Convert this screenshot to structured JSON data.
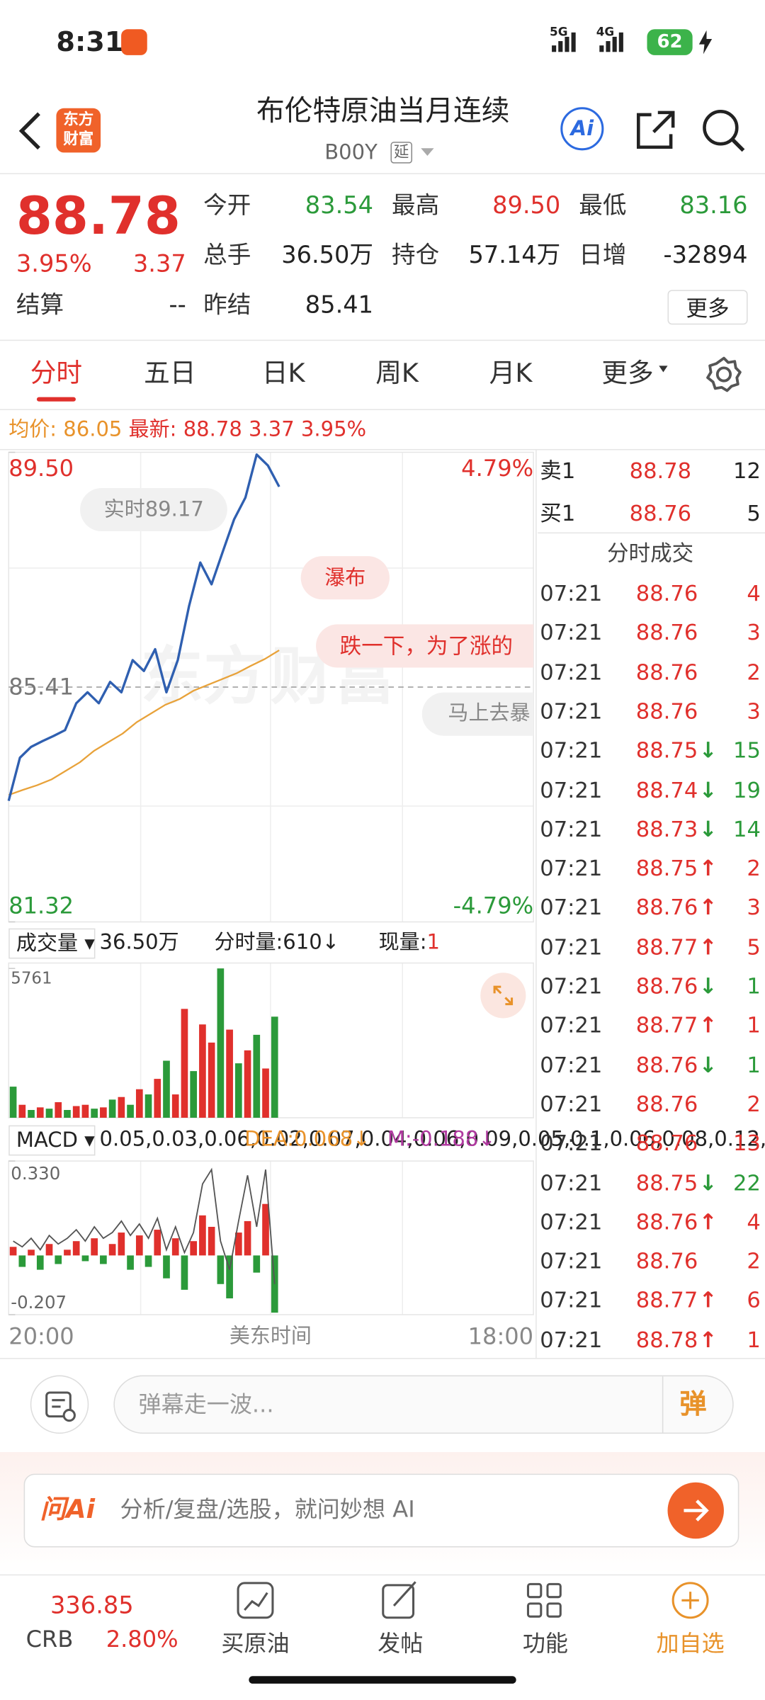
{
  "status": {
    "time": "8:31",
    "net1": "5G",
    "net2": "4G",
    "battery": "62"
  },
  "header": {
    "logo": [
      "东方",
      "财富"
    ],
    "title": "布伦特原油当月连续",
    "code": "B00Y",
    "tag": "延",
    "ai": "Ai"
  },
  "quote": {
    "price": "88.78",
    "pct": "3.95%",
    "change": "3.37",
    "fields": [
      {
        "label": "今开",
        "value": "83.54"
      },
      {
        "label": "最高",
        "value": "89.50"
      },
      {
        "label": "最低",
        "value": "83.16"
      },
      {
        "label": "总手",
        "value": "36.50万"
      },
      {
        "label": "持仓",
        "value": "57.14万"
      },
      {
        "label": "日增",
        "value": "-32894"
      },
      {
        "label": "结算",
        "value": "--"
      },
      {
        "label": "昨结",
        "value": "85.41"
      }
    ],
    "more": "更多"
  },
  "tabs": [
    "分时",
    "五日",
    "日K",
    "周K",
    "月K",
    "更多"
  ],
  "info": {
    "avg_label": "均价:",
    "avg": "86.05",
    "latest_label": "最新:",
    "latest": "88.78",
    "change": "3.37",
    "pct": "3.95%"
  },
  "intraday": {
    "yticks": [
      {
        "value": 89.5,
        "label": "89.50"
      },
      {
        "value": 85.41,
        "label": "85.41"
      },
      {
        "value": 81.32,
        "label": "81.32"
      }
    ],
    "pct_top": "4.79%",
    "pct_bottom": "-4.79%",
    "bubbles": [
      "实时89.17",
      "瀑布",
      "跌一下，为了涨的",
      "马上去暴"
    ],
    "price": [
      83.43,
      84.18,
      84.37,
      84.47,
      84.56,
      84.66,
      85.13,
      85.32,
      85.13,
      85.5,
      85.32,
      85.88,
      85.69,
      86.07,
      85.32,
      85.88,
      86.82,
      87.58,
      87.2,
      87.77,
      88.33,
      88.71,
      89.46,
      89.27,
      88.9
    ],
    "avg": [
      83.53,
      83.62,
      83.7,
      83.8,
      83.95,
      84.1,
      84.3,
      84.45,
      84.6,
      84.8,
      84.95,
      85.1,
      85.2,
      85.35,
      85.45,
      85.55,
      85.65,
      85.78,
      85.9,
      86.05
    ],
    "price_color": "#2f5fb0",
    "avg_color": "#e8a23a",
    "x_left": "20:00",
    "x_mid": "美东时间",
    "x_right": "18:00"
  },
  "volume": {
    "label": "成交量",
    "total": "36.50万",
    "tick_vol": "分时量:610↓",
    "now_label": "现量:",
    "now": "1",
    "max": 5761,
    "values": [
      1200,
      500,
      300,
      400,
      350,
      600,
      300,
      450,
      500,
      350,
      400,
      700,
      800,
      500,
      1100,
      900,
      1500,
      2200,
      900,
      4200,
      1800,
      3600,
      2900,
      5761,
      3400,
      2100,
      2600,
      3200,
      1900,
      3900
    ],
    "colors": [
      "#2b9a3a",
      "#e0302c",
      "#2b9a3a",
      "#e0302c",
      "#2b9a3a",
      "#e0302c",
      "#2b9a3a",
      "#e0302c",
      "#e0302c",
      "#2b9a3a",
      "#e0302c",
      "#2b9a3a",
      "#e0302c",
      "#2b9a3a",
      "#e0302c",
      "#2b9a3a",
      "#e0302c",
      "#2b9a3a",
      "#e0302c",
      "#e0302c",
      "#2b9a3a",
      "#e0302c",
      "#e0302c",
      "#2b9a3a",
      "#e0302c",
      "#2b9a3a",
      "#e0302c",
      "#2b9a3a",
      "#e0302c",
      "#2b9a3a"
    ]
  },
  "macd": {
    "label": "MACD",
    "dif": [
      0.05,
      0.03,
      0.06,
      0.02,
      0.07,
      0.04,
      0.06,
      0.09,
      0.05,
      0.1,
      0.06,
      0.08,
      0.12,
      0.07,
      0.11,
      0.06,
      0.13,
      0.02,
      0.1,
      0.01,
      0.08,
      0.25,
      0.3,
      0.05,
      -0.05,
      0.12,
      0.28,
      0.1,
      0.3,
      -0.1
    ],
    "dea": "DEA:0.068↓",
    "m": "M:-0.188↓",
    "yticks": [
      {
        "value": 0.33,
        "label": "0.330"
      },
      -0.207
    ],
    "bars": [
      0.03,
      -0.04,
      0.02,
      -0.05,
      0.04,
      -0.03,
      0.02,
      0.05,
      -0.02,
      0.06,
      -0.03,
      0.04,
      0.08,
      -0.05,
      0.07,
      -0.04,
      0.09,
      -0.08,
      0.06,
      -0.12,
      0.05,
      0.14,
      0.1,
      -0.1,
      -0.15,
      0.08,
      0.12,
      -0.06,
      0.18,
      -0.2
    ]
  },
  "book": {
    "sell": {
      "label": "卖1",
      "price": "88.78",
      "vol": "12"
    },
    "buy": {
      "label": "买1",
      "price": "88.76",
      "vol": "5"
    },
    "title": "分时成交",
    "trades": [
      {
        "time": "07:21",
        "price": "88.76",
        "dir": "",
        "vol": "4"
      },
      {
        "time": "07:21",
        "price": "88.76",
        "dir": "",
        "vol": "3"
      },
      {
        "time": "07:21",
        "price": "88.76",
        "dir": "",
        "vol": "2"
      },
      {
        "time": "07:21",
        "price": "88.76",
        "dir": "",
        "vol": "3"
      },
      {
        "time": "07:21",
        "price": "88.75",
        "dir": "↓",
        "vol": "15"
      },
      {
        "time": "07:21",
        "price": "88.74",
        "dir": "↓",
        "vol": "19"
      },
      {
        "time": "07:21",
        "price": "88.73",
        "dir": "↓",
        "vol": "14"
      },
      {
        "time": "07:21",
        "price": "88.75",
        "dir": "↑",
        "vol": "2"
      },
      {
        "time": "07:21",
        "price": "88.76",
        "dir": "↑",
        "vol": "3"
      },
      {
        "time": "07:21",
        "price": "88.77",
        "dir": "↑",
        "vol": "5"
      },
      {
        "time": "07:21",
        "price": "88.76",
        "dir": "↓",
        "vol": "1"
      },
      {
        "time": "07:21",
        "price": "88.77",
        "dir": "↑",
        "vol": "1"
      },
      {
        "time": "07:21",
        "price": "88.76",
        "dir": "↓",
        "vol": "1"
      },
      {
        "time": "07:21",
        "price": "88.76",
        "dir": "",
        "vol": "2"
      },
      {
        "time": "07:21",
        "price": "88.76",
        "dir": "",
        "vol": "13"
      },
      {
        "time": "07:21",
        "price": "88.75",
        "dir": "↓",
        "vol": "22"
      },
      {
        "time": "07:21",
        "price": "88.76",
        "dir": "↑",
        "vol": "4"
      },
      {
        "time": "07:21",
        "price": "88.76",
        "dir": "",
        "vol": "2"
      },
      {
        "time": "07:21",
        "price": "88.77",
        "dir": "↑",
        "vol": "6"
      },
      {
        "time": "07:21",
        "price": "88.78",
        "dir": "↑",
        "vol": "1"
      }
    ]
  },
  "comment": {
    "placeholder": "弹幕走一波...",
    "button": "弹"
  },
  "ai_bar": {
    "brand": "问Ai",
    "placeholder": "分析/复盘/选股，就问妙想 AI"
  },
  "nav": {
    "crb_value": "336.85",
    "crb_label": "CRB",
    "crb_pct": "2.80%",
    "items": [
      "买原油",
      "发帖",
      "功能",
      "加自选"
    ]
  }
}
